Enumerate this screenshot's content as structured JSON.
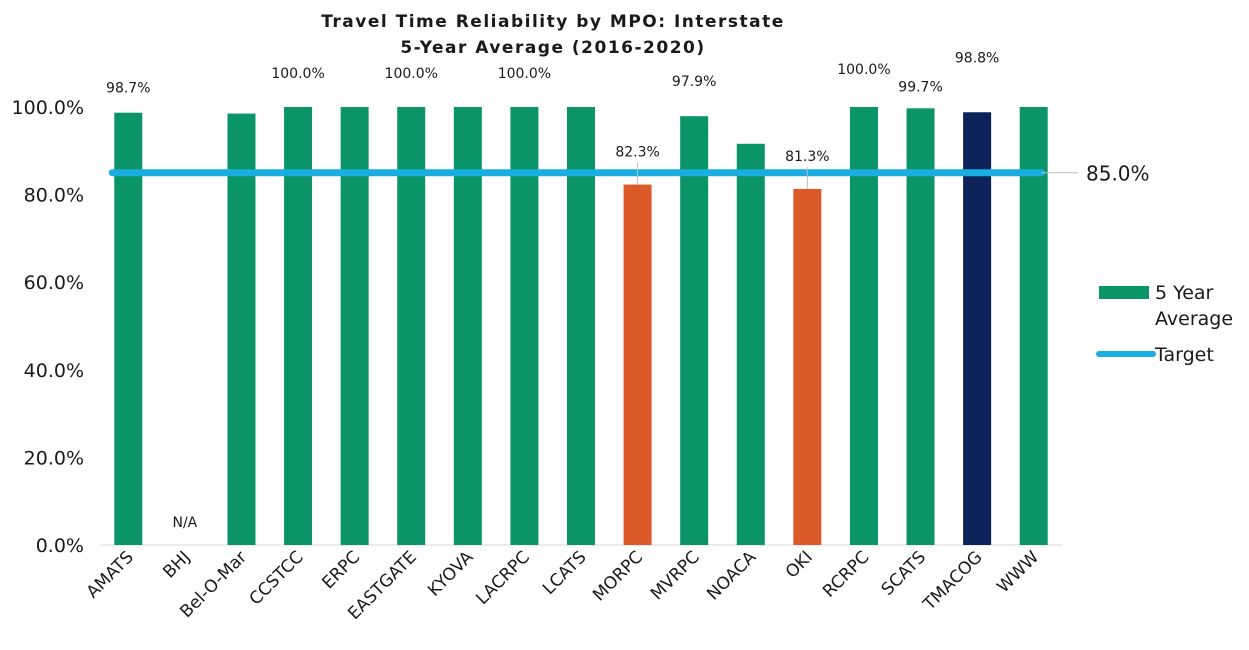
{
  "chart_data": {
    "type": "bar",
    "title": "Travel Time Reliability by MPO: Interstate",
    "subtitle": "5-Year Average (2016-2020)",
    "categories": [
      "AMATS",
      "BHJ",
      "Bel-O-Mar",
      "CCSTCC",
      "ERPC",
      "EASTGATE",
      "KYOVA",
      "LACRPC",
      "LCATS",
      "MORPC",
      "MVRPC",
      "NOACA",
      "OKI",
      "RCRPC",
      "SCATS",
      "TMACOG",
      "WWW"
    ],
    "series": [
      {
        "name": "5 Year Average",
        "values": [
          98.7,
          null,
          98.5,
          100.0,
          100.0,
          100.0,
          100.0,
          100.0,
          100.0,
          82.3,
          97.9,
          91.6,
          81.3,
          100.0,
          99.7,
          98.8,
          100.0
        ],
        "colors": [
          "#0a9467",
          "#0a9467",
          "#0a9467",
          "#0a9467",
          "#0a9467",
          "#0a9467",
          "#0a9467",
          "#0a9467",
          "#0a9467",
          "#dc5a2a",
          "#0a9467",
          "#0a9467",
          "#dc5a2a",
          "#0a9467",
          "#0a9467",
          "#0d2359",
          "#0a9467"
        ]
      },
      {
        "name": "Target",
        "value": 85.0,
        "color": "#1aaee0"
      }
    ],
    "data_labels": [
      "98.7%",
      "N/A",
      "",
      "100.0%",
      "",
      "100.0%",
      "",
      "100.0%",
      "",
      "82.3%",
      "97.9%",
      "",
      "81.3%",
      "100.0%",
      "99.7%",
      "98.8%",
      ""
    ],
    "target_label": "85.0%",
    "y_ticks": [
      "0.0%",
      "20.0%",
      "40.0%",
      "60.0%",
      "80.0%",
      "100.0%"
    ],
    "ylim": [
      0,
      100
    ],
    "y_tick_step": 20,
    "grid": false,
    "legend_position": "right",
    "legend_series_line1": "5 Year",
    "legend_series_line2": "Average",
    "legend_target": "Target"
  }
}
